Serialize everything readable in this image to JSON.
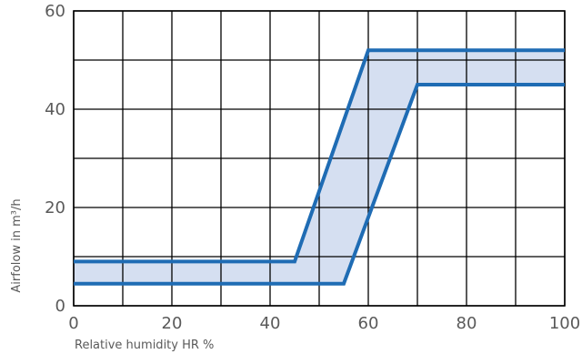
{
  "chart_data": {
    "type": "area",
    "title": "",
    "xlabel": "Relative humidity HR %",
    "ylabel": "Airfolow in m³/h",
    "xlim": [
      0,
      100
    ],
    "ylim": [
      0,
      60
    ],
    "x_ticks": [
      0,
      20,
      40,
      60,
      80,
      100
    ],
    "y_ticks": [
      0,
      20,
      40,
      60
    ],
    "x_gridlines": [
      0,
      10,
      20,
      30,
      40,
      50,
      60,
      70,
      80,
      90,
      100
    ],
    "y_gridlines": [
      0,
      10,
      20,
      30,
      40,
      50,
      60
    ],
    "grid": true,
    "line_color": "#1f6cb4",
    "fill_color": "#d5dff1",
    "series": [
      {
        "x": [
          0,
          45,
          60,
          100
        ],
        "y": [
          9,
          9,
          52,
          52
        ]
      },
      {
        "x": [
          0,
          55,
          70,
          100
        ],
        "y": [
          4.5,
          4.5,
          45,
          45
        ]
      }
    ]
  }
}
